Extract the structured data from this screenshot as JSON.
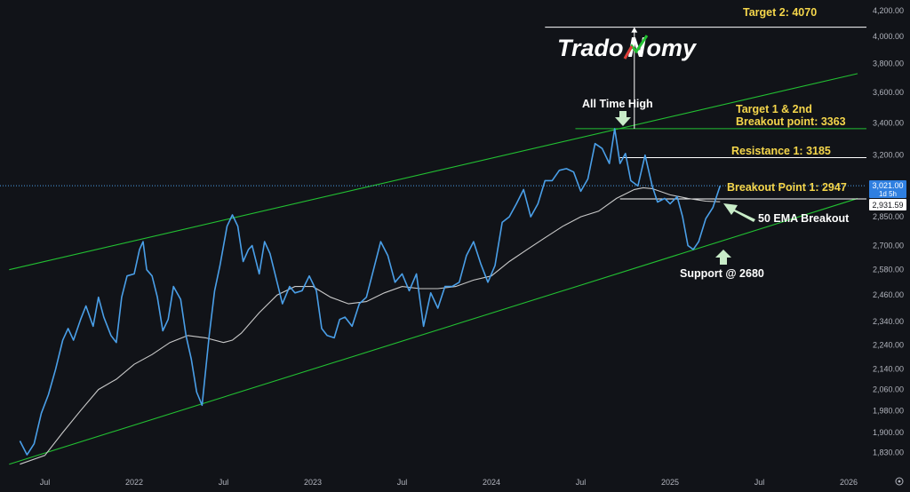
{
  "chart_data": {
    "type": "line",
    "title": "",
    "xlabel": "",
    "ylabel": "",
    "ylim": [
      1780,
      4270
    ],
    "y_scale": "log",
    "x_ticks": [
      "Jul",
      "2022",
      "Jul",
      "2023",
      "Jul",
      "2024",
      "Jul",
      "2025",
      "Jul",
      "2026"
    ],
    "y_ticks": [
      "1,830.00",
      "1,900.00",
      "1,980.00",
      "2,060.00",
      "2,140.00",
      "2,240.00",
      "2,340.00",
      "2,460.00",
      "2,580.00",
      "2,700.00",
      "2,850.00",
      "3,000.00",
      "3,200.00",
      "3,400.00",
      "3,600.00",
      "3,800.00",
      "4,000.00",
      "4,200.00"
    ],
    "series": [
      {
        "color": "#4a9fe8",
        "x": [
          2021.36,
          2021.4,
          2021.44,
          2021.48,
          2021.52,
          2021.56,
          2021.6,
          2021.63,
          2021.66,
          2021.7,
          2021.73,
          2021.77,
          2021.8,
          2021.83,
          2021.87,
          2021.9,
          2021.93,
          2021.96,
          2022.0,
          2022.03,
          2022.05,
          2022.07,
          2022.1,
          2022.13,
          2022.16,
          2022.19,
          2022.22,
          2022.26,
          2022.29,
          2022.32,
          2022.35,
          2022.38,
          2022.42,
          2022.45,
          2022.48,
          2022.52,
          2022.55,
          2022.58,
          2022.61,
          2022.64,
          2022.66,
          2022.7,
          2022.73,
          2022.76,
          2022.8,
          2022.83,
          2022.87,
          2022.9,
          2022.94,
          2022.98,
          2023.02,
          2023.05,
          2023.08,
          2023.12,
          2023.15,
          2023.18,
          2023.22,
          2023.26,
          2023.3,
          2023.34,
          2023.38,
          2023.42,
          2023.46,
          2023.5,
          2023.54,
          2023.58,
          2023.62,
          2023.66,
          2023.7,
          2023.74,
          2023.78,
          2023.82,
          2023.86,
          2023.9,
          2023.94,
          2023.98,
          2024.02,
          2024.06,
          2024.1,
          2024.14,
          2024.18,
          2024.22,
          2024.26,
          2024.3,
          2024.34,
          2024.38,
          2024.42,
          2024.46,
          2024.5,
          2024.54,
          2024.58,
          2024.62,
          2024.66,
          2024.69,
          2024.72,
          2024.75,
          2024.78,
          2024.82,
          2024.86,
          2024.9,
          2024.93,
          2024.97,
          2025.0,
          2025.04,
          2025.07,
          2025.1,
          2025.13,
          2025.16,
          2025.2,
          2025.24,
          2025.28
        ],
        "values": [
          1870,
          1822,
          1860,
          1970,
          2040,
          2140,
          2260,
          2310,
          2260,
          2350,
          2410,
          2320,
          2450,
          2360,
          2280,
          2250,
          2450,
          2550,
          2560,
          2680,
          2720,
          2580,
          2550,
          2450,
          2300,
          2350,
          2500,
          2440,
          2280,
          2180,
          2050,
          2000,
          2280,
          2480,
          2600,
          2800,
          2860,
          2800,
          2620,
          2680,
          2700,
          2560,
          2720,
          2660,
          2520,
          2420,
          2500,
          2470,
          2480,
          2550,
          2480,
          2310,
          2280,
          2270,
          2350,
          2360,
          2320,
          2420,
          2450,
          2580,
          2720,
          2650,
          2520,
          2560,
          2480,
          2560,
          2320,
          2470,
          2400,
          2500,
          2500,
          2520,
          2650,
          2720,
          2610,
          2520,
          2600,
          2820,
          2850,
          2920,
          3000,
          2850,
          2920,
          3050,
          3050,
          3110,
          3120,
          3100,
          2990,
          3060,
          3270,
          3240,
          3150,
          3363,
          3150,
          3210,
          3050,
          3020,
          3200,
          3020,
          2930,
          2950,
          2920,
          2960,
          2850,
          2700,
          2680,
          2720,
          2840,
          2900,
          3021
        ]
      },
      {
        "name": "50 EMA",
        "color": "#c9c9c9",
        "x": [
          2021.36,
          2021.5,
          2021.6,
          2021.7,
          2021.8,
          2021.9,
          2022.0,
          2022.1,
          2022.2,
          2022.3,
          2022.4,
          2022.5,
          2022.55,
          2022.6,
          2022.7,
          2022.8,
          2022.9,
          2023.0,
          2023.1,
          2023.2,
          2023.3,
          2023.4,
          2023.5,
          2023.6,
          2023.7,
          2023.8,
          2023.9,
          2024.0,
          2024.1,
          2024.2,
          2024.3,
          2024.4,
          2024.5,
          2024.6,
          2024.7,
          2024.8,
          2024.85,
          2024.9,
          2025.0,
          2025.1,
          2025.2,
          2025.28
        ],
        "values": [
          1790,
          1820,
          1900,
          1980,
          2060,
          2100,
          2160,
          2200,
          2250,
          2280,
          2270,
          2250,
          2260,
          2290,
          2380,
          2460,
          2500,
          2500,
          2450,
          2420,
          2430,
          2470,
          2500,
          2490,
          2490,
          2500,
          2530,
          2550,
          2620,
          2680,
          2740,
          2800,
          2850,
          2880,
          2950,
          3000,
          3010,
          3005,
          2970,
          2950,
          2935,
          2931.59
        ]
      }
    ],
    "last_price_label": "3,021.00",
    "timeframe_label": "1d 5h",
    "ema_price_label": "2,931.59",
    "channel_upper": [
      [
        2021.3,
        2580
      ],
      [
        2026.05,
        3730
      ]
    ],
    "channel_lower": [
      [
        2021.3,
        1790
      ],
      [
        2026.05,
        2950
      ]
    ],
    "levels": [
      {
        "label": "Target 2: 4070",
        "value": 4070,
        "x_start": 2024.3,
        "color": "#ffffff"
      },
      {
        "label": "Target 1 & 2nd\nBreakout point: 3363",
        "value": 3363,
        "x_start": 2024.47,
        "color": "#22c032"
      },
      {
        "label": "Resistance 1: 3185",
        "value": 3185,
        "x_start": 2024.72,
        "color": "#ffffff"
      },
      {
        "label": "Breakout Point 1: 2947",
        "value": 2947,
        "x_start": 2024.72,
        "color": "#ffffff"
      }
    ],
    "annotations": [
      {
        "text": "All Time High",
        "color": "white"
      },
      {
        "text": "50 EMA Breakout",
        "color": "white"
      },
      {
        "text": "Support @ 2680",
        "color": "white"
      }
    ],
    "grid": false,
    "legend": "none"
  },
  "brand": {
    "logo_part1": "Trado",
    "logo_part2": "omy"
  },
  "colors": {
    "background": "#111318",
    "price_line": "#4a9fe8",
    "ema_line": "#c9c9c9",
    "channel": "#22c032",
    "level_text": "#f5d64b",
    "arrow": "#c8ecc8"
  }
}
